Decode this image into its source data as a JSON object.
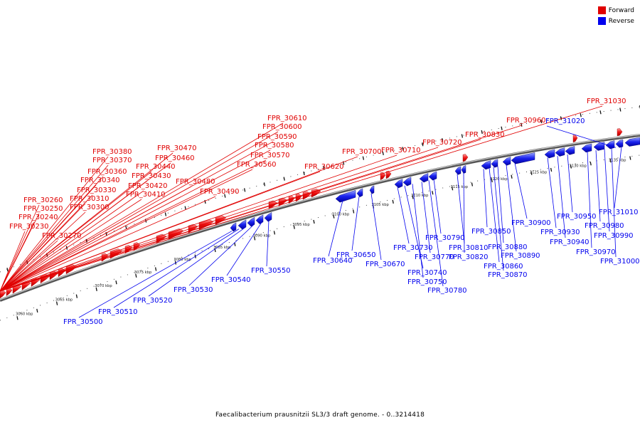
{
  "legend": {
    "forward_label": "Forward",
    "reverse_label": "Reverse",
    "forward_color": "#e00000",
    "reverse_color": "#0000ee"
  },
  "caption": "Faecalibacterium prausnitzii SL3/3 draft genome. - 0..3214418",
  "kbp_ticks": [
    "3060 kbp",
    "3065 kbp",
    "3070 kbp",
    "3075 kbp",
    "3080 kbp",
    "3085 kbp",
    "3090 kbp",
    "3095 kbp",
    "3100 kbp",
    "3105 kbp",
    "3110 kbp",
    "3115 kbp",
    "3120 kbp",
    "3125 kbp",
    "3130 kbp",
    "3135 kbp"
  ],
  "forward_labels": [
    "FPR_30230",
    "FPR_30240",
    "FPR_30250",
    "FPR_30260",
    "FPR_30270",
    "FPR_30300",
    "FPR_30310",
    "FPR_30330",
    "FPR_30340",
    "FPR_30360",
    "FPR_30370",
    "FPR_30380",
    "FPR_30410",
    "FPR_30420",
    "FPR_30430",
    "FPR_30440",
    "FPR_30460",
    "FPR_30470",
    "FPR_30480",
    "FPR_30490",
    "FPR_30560",
    "FPR_30570",
    "FPR_30580",
    "FPR_30590",
    "FPR_30600",
    "FPR_30610",
    "FPR_30620",
    "FPR_30700",
    "FPR_30710",
    "FPR_30720",
    "FPR_30830",
    "FPR_30960",
    "FPR_31030"
  ],
  "reverse_labels": [
    "FPR_30500",
    "FPR_30510",
    "FPR_30520",
    "FPR_30530",
    "FPR_30540",
    "FPR_30550",
    "FPR_30640",
    "FPR_30650",
    "FPR_30670",
    "FPR_30730",
    "FPR_30740",
    "FPR_30750",
    "FPR_30770",
    "FPR_30780",
    "FPR_30790",
    "FPR_30810",
    "FPR_30820",
    "FPR_30850",
    "FPR_30860",
    "FPR_30870",
    "FPR_30880",
    "FPR_30890",
    "FPR_30900",
    "FPR_30930",
    "FPR_30940",
    "FPR_30950",
    "FPR_30970",
    "FPR_30980",
    "FPR_30990",
    "FPR_31000",
    "FPR_31010",
    "FPR_31020"
  ]
}
